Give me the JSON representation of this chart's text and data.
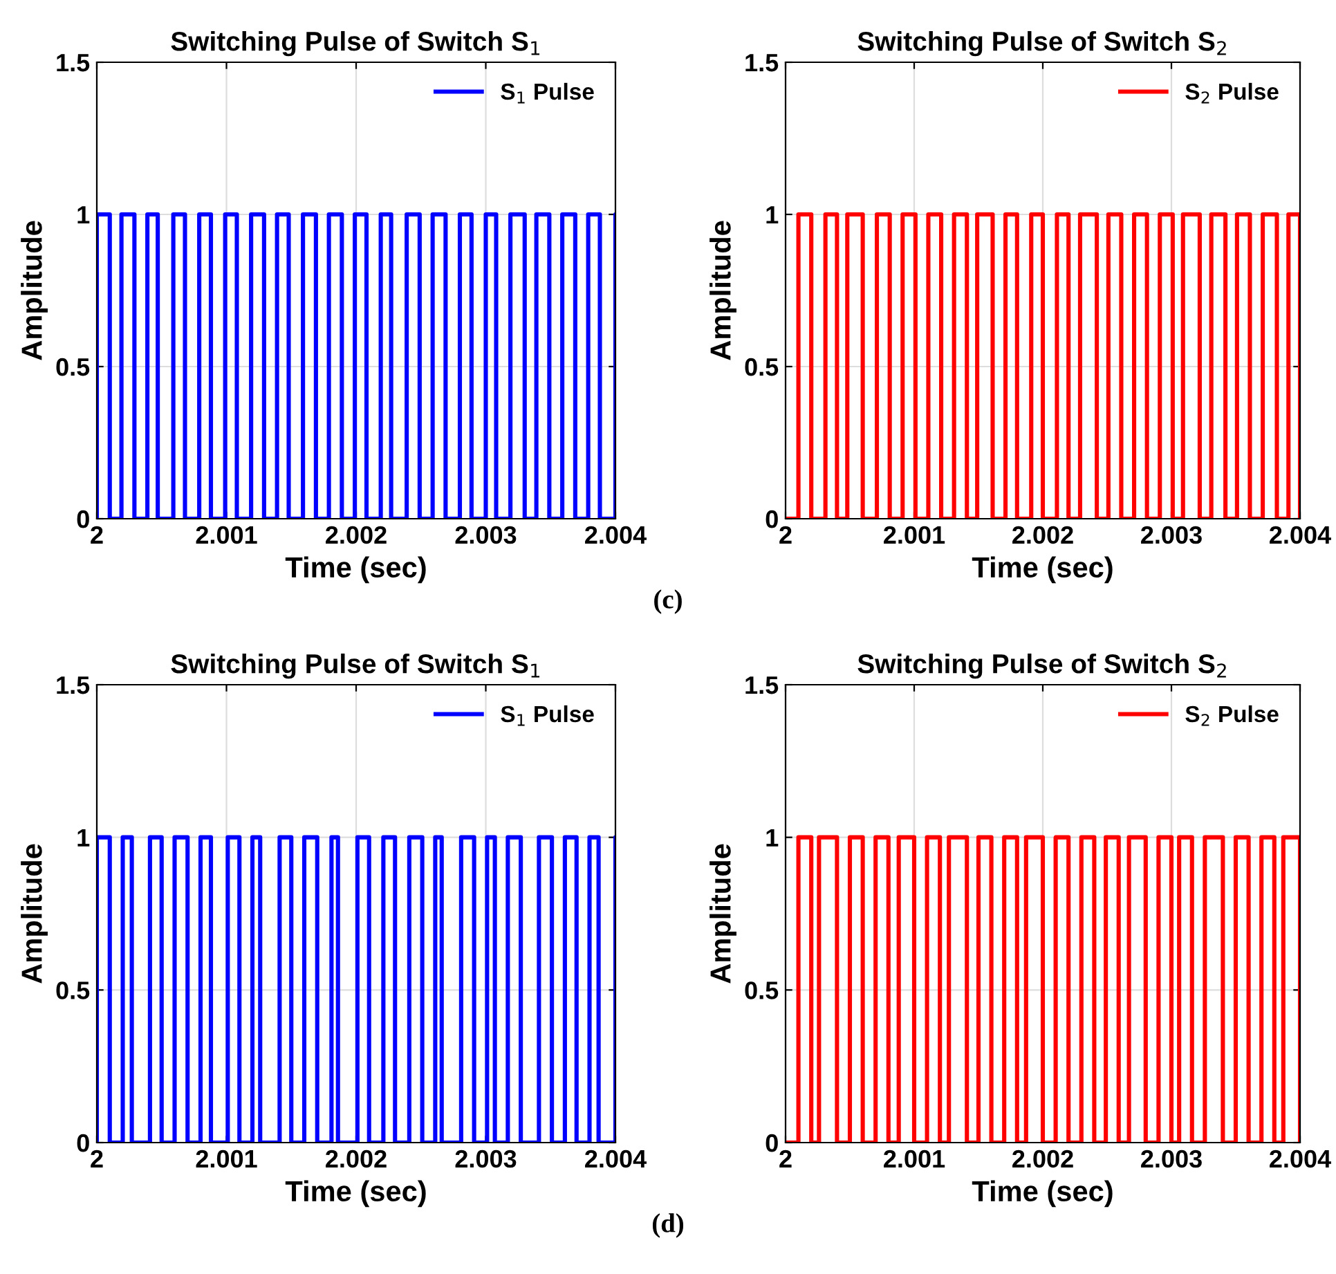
{
  "chart_data": [
    {
      "type": "step",
      "title": "Switching Pulse of Switch S$_{1}$",
      "xlabel": "Time (sec)",
      "ylabel": "Amplitude",
      "xlim": [
        2,
        2.004
      ],
      "ylim": [
        0,
        1.5
      ],
      "xticks": [
        2,
        2.001,
        2.002,
        2.003,
        2.004
      ],
      "yticks": [
        0,
        0.5,
        1,
        1.5
      ],
      "grid": true,
      "legend": "top right",
      "series": [
        {
          "name": "S$_{1}$ Pulse",
          "color": "#0000ff",
          "x": [
            2,
            2,
            2.0001,
            2.00019,
            2.00029,
            2.00039,
            2.00047,
            2.00059,
            2.00068,
            2.00079,
            2.00088,
            2.00099,
            2.00108,
            2.00119,
            2.00129,
            2.00139,
            2.00148,
            2.00159,
            2.00169,
            2.00179,
            2.00189,
            2.00199,
            2.00208,
            2.00219,
            2.00227,
            2.00239,
            2.00249,
            2.00259,
            2.00269,
            2.0028,
            2.00289,
            2.003,
            2.00308,
            2.00319,
            2.0033,
            2.00339,
            2.00349,
            2.00359,
            2.00369,
            2.00379,
            2.00388,
            2.004
          ],
          "values": [
            0,
            1,
            0,
            1,
            0,
            1,
            0,
            1,
            0,
            1,
            0,
            1,
            0,
            1,
            0,
            1,
            0,
            1,
            0,
            1,
            0,
            1,
            0,
            1,
            0,
            1,
            0,
            1,
            0,
            1,
            0,
            1,
            0,
            1,
            0,
            1,
            0,
            1,
            0,
            1,
            0,
            1
          ]
        }
      ]
    },
    {
      "type": "step",
      "title": "Switching Pulse of Switch S$_{2}$",
      "xlabel": "Time (sec)",
      "ylabel": "Amplitude",
      "xlim": [
        2,
        2.004
      ],
      "ylim": [
        0,
        1.5
      ],
      "xticks": [
        2,
        2.001,
        2.002,
        2.003,
        2.004
      ],
      "yticks": [
        0,
        0.5,
        1,
        1.5
      ],
      "grid": true,
      "legend": "top right",
      "annotations": [
        "(c)"
      ],
      "series": [
        {
          "name": "S$_{2}$ Pulse",
          "color": "#ff0000",
          "x": [
            2,
            2.0001,
            2.0002,
            2.00031,
            2.0004,
            2.00048,
            2.0006,
            2.00071,
            2.00081,
            2.00091,
            2.00101,
            2.00111,
            2.00121,
            2.00131,
            2.00141,
            2.00149,
            2.00161,
            2.00171,
            2.0018,
            2.00191,
            2.002,
            2.00211,
            2.0022,
            2.00229,
            2.00242,
            2.00251,
            2.00261,
            2.00271,
            2.00281,
            2.00291,
            2.00301,
            2.00309,
            2.00322,
            2.00331,
            2.00342,
            2.00351,
            2.00361,
            2.00371,
            2.00382,
            2.00391,
            2.004
          ],
          "values": [
            0,
            1,
            0,
            1,
            0,
            1,
            0,
            1,
            0,
            1,
            0,
            1,
            0,
            1,
            0,
            1,
            0,
            1,
            0,
            1,
            0,
            1,
            0,
            1,
            0,
            1,
            0,
            1,
            0,
            1,
            0,
            1,
            0,
            1,
            0,
            1,
            0,
            1,
            0,
            1,
            0
          ]
        }
      ]
    },
    {
      "type": "step",
      "title": "Switching Pulse of Switch S$_{1}$",
      "xlabel": "Time (sec)",
      "ylabel": "Amplitude",
      "xlim": [
        2,
        2.004
      ],
      "ylim": [
        0,
        1.5
      ],
      "xticks": [
        2,
        2.001,
        2.002,
        2.003,
        2.004
      ],
      "yticks": [
        0,
        0.5,
        1,
        1.5
      ],
      "grid": true,
      "legend": "top right",
      "series": [
        {
          "name": "S$_{1}$ Pulse",
          "color": "#0000ff",
          "x": [
            2,
            2,
            2.0001,
            2.0002,
            2.00027,
            2.00041,
            2.0005,
            2.0006,
            2.0007,
            2.0008,
            2.00088,
            2.00101,
            2.0011,
            2.0012,
            2.00126,
            2.00141,
            2.0015,
            2.0016,
            2.0017,
            2.00181,
            2.00186,
            2.00201,
            2.0021,
            2.00221,
            2.0023,
            2.00241,
            2.00251,
            2.00261,
            2.00266,
            2.00281,
            2.00291,
            2.00301,
            2.00307,
            2.00317,
            2.00327,
            2.00341,
            2.00351,
            2.00361,
            2.0037,
            2.0038,
            2.00387,
            2.004
          ],
          "values": [
            0,
            1,
            0,
            1,
            0,
            1,
            0,
            1,
            0,
            1,
            0,
            1,
            0,
            1,
            0,
            1,
            0,
            1,
            0,
            1,
            0,
            1,
            0,
            1,
            0,
            1,
            0,
            1,
            0,
            1,
            0,
            1,
            0,
            1,
            0,
            1,
            0,
            1,
            0,
            1,
            0,
            1
          ]
        }
      ]
    },
    {
      "type": "step",
      "title": "Switching Pulse of Switch S$_{2}$",
      "xlabel": "Time (sec)",
      "ylabel": "Amplitude",
      "xlim": [
        2,
        2.004
      ],
      "ylim": [
        0,
        1.5
      ],
      "xticks": [
        2,
        2.001,
        2.002,
        2.003,
        2.004
      ],
      "yticks": [
        0,
        0.5,
        1,
        1.5
      ],
      "grid": true,
      "legend": "top right",
      "annotations": [
        "(d)"
      ],
      "series": [
        {
          "name": "S$_{2}$ Pulse",
          "color": "#ff0000",
          "x": [
            2,
            2.0001,
            2.0002,
            2.00026,
            2.0004,
            2.0005,
            2.0006,
            2.0007,
            2.0008,
            2.00088,
            2.001,
            2.0011,
            2.0012,
            2.00127,
            2.00141,
            2.0015,
            2.0016,
            2.0017,
            2.0018,
            2.00187,
            2.002,
            2.0021,
            2.0022,
            2.0023,
            2.0024,
            2.00249,
            2.00259,
            2.00267,
            2.0028,
            2.0029,
            2.003,
            2.00306,
            2.00316,
            2.00326,
            2.0034,
            2.0035,
            2.0036,
            2.0037,
            2.0038,
            2.00387,
            2.004
          ],
          "values": [
            0,
            1,
            0,
            1,
            0,
            1,
            0,
            1,
            0,
            1,
            0,
            1,
            0,
            1,
            0,
            1,
            0,
            1,
            0,
            1,
            0,
            1,
            0,
            1,
            0,
            1,
            0,
            1,
            0,
            1,
            0,
            1,
            0,
            1,
            0,
            1,
            0,
            1,
            0,
            1,
            0
          ]
        }
      ]
    }
  ]
}
